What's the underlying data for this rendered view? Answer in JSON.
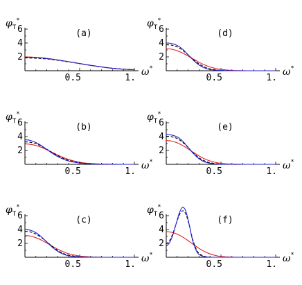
{
  "chart_data": {
    "type": "line",
    "layout": "3x2 grid",
    "x_axis": {
      "label": "ω",
      "label_superscript": "*",
      "xlim": [
        0,
        1.0
      ],
      "ticks": [
        0.5,
        1.0
      ],
      "tick_labels": [
        "0.5",
        "1."
      ]
    },
    "y_axis": {
      "label": "φ",
      "label_subscript": "T",
      "label_superscript": "*",
      "ylim": [
        0,
        7
      ],
      "ticks": [
        2,
        4,
        6
      ],
      "tick_labels": [
        "2",
        "4",
        "6"
      ]
    },
    "series_styles": [
      {
        "style": "solid",
        "color": "#1f1fd6"
      },
      {
        "style": "dashed",
        "color": "#000000"
      },
      {
        "style": "solid",
        "color": "#e02020"
      }
    ],
    "panels": [
      {
        "label": "(a)",
        "x": [
          0,
          0.1,
          0.2,
          0.3,
          0.4,
          0.5,
          0.6,
          0.7,
          0.8,
          0.9,
          1.0
        ],
        "series": [
          {
            "values": [
              1.95,
              1.9,
              1.76,
              1.55,
              1.3,
              1.04,
              0.78,
              0.55,
              0.35,
              0.22,
              0.14
            ]
          },
          {
            "values": [
              1.85,
              1.81,
              1.7,
              1.51,
              1.28,
              1.03,
              0.78,
              0.55,
              0.36,
              0.23,
              0.15
            ]
          },
          {
            "values": [
              2.0,
              1.93,
              1.78,
              1.56,
              1.3,
              1.03,
              0.77,
              0.54,
              0.35,
              0.22,
              0.14
            ]
          }
        ]
      },
      {
        "label": "(b)",
        "x": [
          0,
          0.05,
          0.1,
          0.15,
          0.2,
          0.25,
          0.3,
          0.35,
          0.4,
          0.5,
          0.6,
          0.7,
          0.8,
          0.9,
          1.0
        ],
        "series": [
          {
            "values": [
              3.55,
              3.45,
              3.15,
              2.7,
              2.15,
              1.6,
              1.12,
              0.75,
              0.48,
              0.18,
              0.06,
              0.02,
              0.01,
              0.0,
              0.0
            ]
          },
          {
            "values": [
              3.25,
              3.18,
              2.98,
              2.62,
              2.18,
              1.7,
              1.25,
              0.87,
              0.58,
              0.23,
              0.08,
              0.03,
              0.01,
              0.0,
              0.0
            ]
          },
          {
            "values": [
              2.95,
              2.88,
              2.72,
              2.45,
              2.1,
              1.72,
              1.34,
              0.99,
              0.7,
              0.3,
              0.11,
              0.04,
              0.01,
              0.0,
              0.0
            ]
          }
        ]
      },
      {
        "label": "(c)",
        "x": [
          0,
          0.05,
          0.1,
          0.15,
          0.2,
          0.25,
          0.3,
          0.35,
          0.4,
          0.5,
          0.6,
          0.7,
          0.8,
          0.9,
          1.0
        ],
        "series": [
          {
            "values": [
              4.0,
              3.9,
              3.55,
              2.95,
              2.2,
              1.45,
              0.85,
              0.45,
              0.22,
              0.05,
              0.01,
              0.0,
              0.0,
              0.0,
              0.0
            ]
          },
          {
            "values": [
              3.75,
              3.65,
              3.35,
              2.85,
              2.22,
              1.56,
              0.98,
              0.56,
              0.3,
              0.07,
              0.02,
              0.0,
              0.0,
              0.0,
              0.0
            ]
          },
          {
            "values": [
              3.15,
              3.05,
              2.82,
              2.48,
              2.05,
              1.6,
              1.16,
              0.8,
              0.51,
              0.18,
              0.05,
              0.01,
              0.0,
              0.0,
              0.0
            ]
          }
        ]
      },
      {
        "label": "(d)",
        "x": [
          0,
          0.05,
          0.1,
          0.15,
          0.2,
          0.25,
          0.3,
          0.35,
          0.4,
          0.5,
          0.6,
          0.7,
          0.8,
          0.9,
          1.0
        ],
        "series": [
          {
            "values": [
              4.0,
              3.92,
              3.65,
              3.1,
              2.3,
              1.48,
              0.82,
              0.4,
              0.18,
              0.03,
              0.0,
              0.0,
              0.0,
              0.0,
              0.0
            ]
          },
          {
            "values": [
              3.75,
              3.68,
              3.42,
              2.95,
              2.28,
              1.58,
              0.98,
              0.54,
              0.27,
              0.05,
              0.01,
              0.0,
              0.0,
              0.0,
              0.0
            ]
          },
          {
            "values": [
              3.2,
              3.1,
              2.88,
              2.55,
              2.12,
              1.66,
              1.22,
              0.84,
              0.54,
              0.19,
              0.05,
              0.01,
              0.0,
              0.0,
              0.0
            ]
          }
        ]
      },
      {
        "label": "(e)",
        "x": [
          0,
          0.05,
          0.1,
          0.15,
          0.2,
          0.25,
          0.3,
          0.35,
          0.4,
          0.5,
          0.6,
          0.7,
          0.8,
          0.9,
          1.0
        ],
        "series": [
          {
            "values": [
              4.3,
              4.22,
              3.95,
              3.35,
              2.45,
              1.52,
              0.8,
              0.36,
              0.14,
              0.02,
              0.0,
              0.0,
              0.0,
              0.0,
              0.0
            ]
          },
          {
            "values": [
              4.05,
              3.98,
              3.72,
              3.18,
              2.42,
              1.62,
              0.95,
              0.5,
              0.23,
              0.04,
              0.0,
              0.0,
              0.0,
              0.0,
              0.0
            ]
          },
          {
            "values": [
              3.45,
              3.35,
              3.1,
              2.72,
              2.22,
              1.7,
              1.21,
              0.8,
              0.49,
              0.15,
              0.04,
              0.01,
              0.0,
              0.0,
              0.0
            ]
          }
        ]
      },
      {
        "label": "(f)",
        "x": [
          0,
          0.03,
          0.06,
          0.09,
          0.12,
          0.15,
          0.18,
          0.21,
          0.24,
          0.27,
          0.3,
          0.35,
          0.4,
          0.45,
          0.5,
          0.6,
          0.7,
          0.8,
          1.0
        ],
        "series": [
          {
            "values": [
              1.6,
              2.1,
              3.2,
              4.8,
              6.4,
              7.2,
              6.6,
              4.7,
              2.5,
              1.1,
              0.4,
              0.08,
              0.01,
              0.0,
              0.0,
              0.0,
              0.0,
              0.0,
              0.0
            ]
          },
          {
            "values": [
              1.9,
              2.4,
              3.4,
              4.8,
              6.1,
              6.7,
              6.2,
              4.6,
              2.7,
              1.3,
              0.55,
              0.13,
              0.02,
              0.0,
              0.0,
              0.0,
              0.0,
              0.0,
              0.0
            ]
          },
          {
            "values": [
              3.7,
              3.65,
              3.55,
              3.4,
              3.18,
              2.92,
              2.62,
              2.28,
              1.94,
              1.6,
              1.28,
              0.82,
              0.48,
              0.26,
              0.12,
              0.02,
              0.0,
              0.0,
              0.0
            ]
          }
        ]
      }
    ]
  }
}
